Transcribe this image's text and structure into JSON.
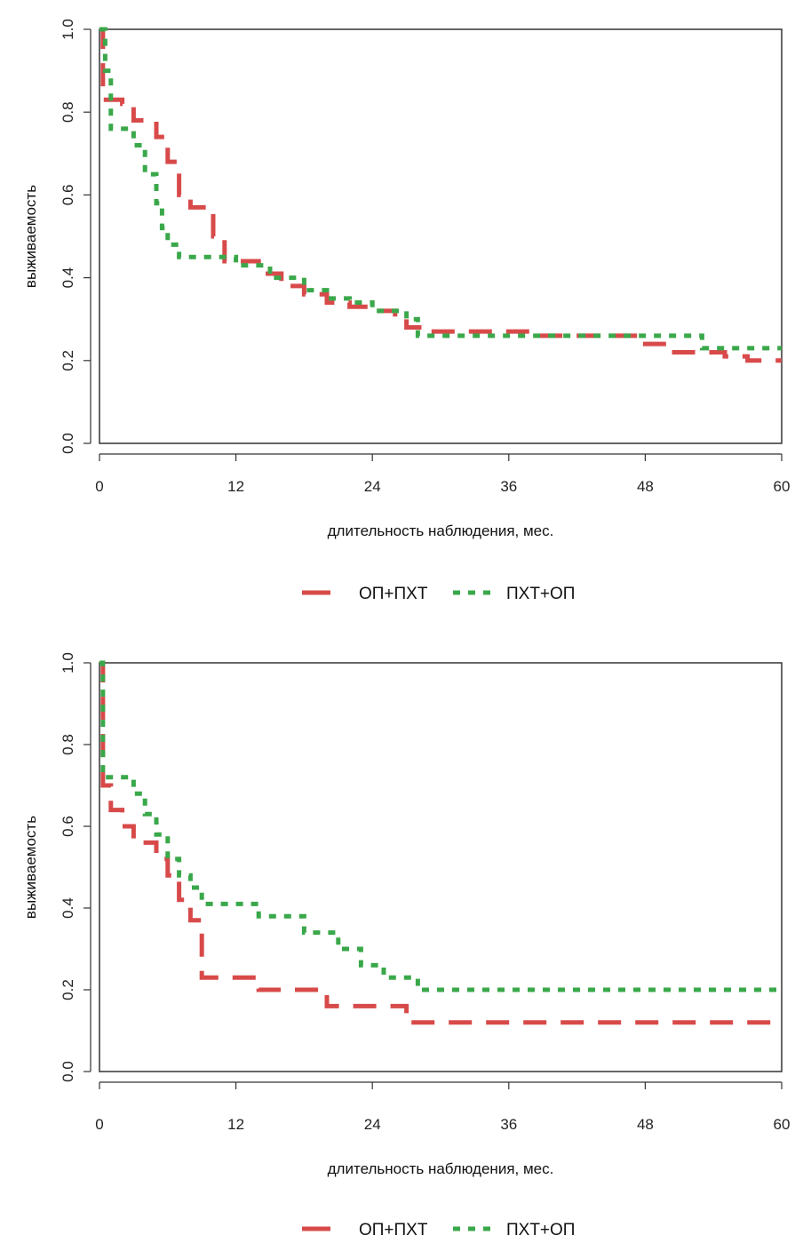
{
  "colors": {
    "op_pht": "#d84a4a",
    "pht_op": "#3aa84a",
    "axis": "#333333"
  },
  "chart_data": [
    {
      "type": "line",
      "xlabel": "длительность наблюдения, мес.",
      "ylabel": "выживаемость",
      "xlim": [
        0,
        60
      ],
      "ylim": [
        0,
        1
      ],
      "xticks": [
        "0",
        "12",
        "24",
        "36",
        "48",
        "60"
      ],
      "yticks": [
        "0.0",
        "0.2",
        "0.4",
        "0.6",
        "0.8",
        "1.0"
      ],
      "legend": [
        "ОП+ПХТ",
        "ПХТ+ОП"
      ],
      "series": [
        {
          "name": "ОП+ПХТ",
          "color": "#d84a4a",
          "x": [
            0,
            0.3,
            2,
            3,
            5,
            6,
            7,
            8,
            10,
            11,
            14,
            16,
            18,
            20,
            22,
            24,
            26,
            27,
            29,
            31,
            38,
            48,
            50,
            55,
            57,
            60
          ],
          "y": [
            1.0,
            0.83,
            0.82,
            0.78,
            0.74,
            0.68,
            0.6,
            0.57,
            0.5,
            0.44,
            0.41,
            0.38,
            0.36,
            0.34,
            0.33,
            0.32,
            0.3,
            0.28,
            0.27,
            0.27,
            0.26,
            0.24,
            0.22,
            0.21,
            0.2,
            0.2
          ]
        },
        {
          "name": "ПХТ+ОП",
          "color": "#3aa84a",
          "x": [
            0,
            0.5,
            1,
            3,
            4,
            5,
            5.5,
            6,
            7,
            12,
            15,
            18,
            20,
            22,
            24,
            27,
            28,
            36,
            53,
            60
          ],
          "y": [
            1.0,
            0.9,
            0.76,
            0.72,
            0.65,
            0.58,
            0.52,
            0.48,
            0.45,
            0.43,
            0.4,
            0.37,
            0.35,
            0.34,
            0.32,
            0.3,
            0.26,
            0.26,
            0.23,
            0.23
          ]
        }
      ]
    },
    {
      "type": "line",
      "xlabel": "длительность наблюдения, мес.",
      "ylabel": "выживаемость",
      "xlim": [
        0,
        60
      ],
      "ylim": [
        0,
        1
      ],
      "xticks": [
        "0",
        "12",
        "24",
        "36",
        "48",
        "60"
      ],
      "yticks": [
        "0.0",
        "0.2",
        "0.4",
        "0.6",
        "0.8",
        "1.0"
      ],
      "legend": [
        "ОП+ПХТ",
        "ПХТ+ОП"
      ],
      "series": [
        {
          "name": "ОП+ПХТ",
          "color": "#d84a4a",
          "x": [
            0,
            0.3,
            1,
            2,
            3,
            5,
            6,
            7,
            8,
            9,
            14,
            20,
            27,
            28,
            60
          ],
          "y": [
            1.0,
            0.7,
            0.64,
            0.6,
            0.56,
            0.52,
            0.48,
            0.42,
            0.37,
            0.23,
            0.2,
            0.16,
            0.12,
            0.12,
            0.12
          ]
        },
        {
          "name": "ПХТ+ОП",
          "color": "#3aa84a",
          "x": [
            0,
            0.3,
            3,
            4,
            5,
            6,
            7,
            8,
            9,
            14,
            18,
            21,
            23,
            25,
            28,
            60
          ],
          "y": [
            1.0,
            0.72,
            0.68,
            0.63,
            0.58,
            0.52,
            0.48,
            0.45,
            0.41,
            0.38,
            0.34,
            0.3,
            0.26,
            0.23,
            0.2,
            0.2
          ]
        }
      ]
    }
  ]
}
